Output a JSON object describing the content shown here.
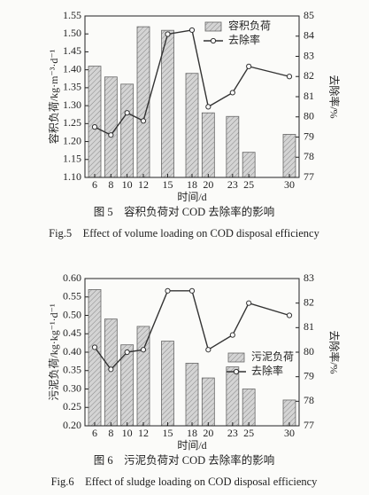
{
  "chart_data": [
    {
      "type": "bar-line",
      "x": [
        6,
        8,
        10,
        12,
        15,
        18,
        20,
        23,
        25,
        30
      ],
      "xlim": [
        4.8,
        31.2
      ],
      "xticks": [
        6,
        8,
        10,
        12,
        15,
        18,
        20,
        23,
        25,
        30
      ],
      "x_label": "时间/d",
      "y_label": "容积负荷/kg·m⁻³·d⁻¹",
      "y2_label": "去除率/%",
      "ylim": [
        1.1,
        1.55
      ],
      "yticks": [
        {
          "value": 1.1,
          "label": "1.10"
        },
        1.15,
        {
          "value": 1.2,
          "label": "1.20"
        },
        1.25,
        {
          "value": 1.3,
          "label": "1.30"
        },
        1.35,
        {
          "value": 1.4,
          "label": "1.40"
        },
        1.45,
        {
          "value": 1.5,
          "label": "1.50"
        },
        1.55
      ],
      "y2lim": [
        77,
        85
      ],
      "y2ticks": [
        77,
        78,
        79,
        80,
        81,
        82,
        83,
        84,
        85
      ],
      "legend": "top-right",
      "series": [
        {
          "name": "容积负荷",
          "type": "bar",
          "color": "#c4c4c4",
          "values": [
            1.41,
            1.38,
            1.36,
            1.52,
            1.51,
            1.39,
            1.28,
            1.27,
            1.17,
            1.22
          ]
        },
        {
          "name": "去除率",
          "type": "line",
          "axis": "y2",
          "color": "#333333",
          "values": [
            79.5,
            79.1,
            80.2,
            79.8,
            84.1,
            84.3,
            80.5,
            81.2,
            82.5,
            82.0
          ]
        }
      ],
      "captions": [
        "图 5　容积负荷对 COD 去除率的影响",
        "Fig.5　Effect of volume loading on COD disposal efficiency"
      ]
    },
    {
      "type": "bar-line",
      "x": [
        6,
        8,
        10,
        12,
        15,
        18,
        20,
        23,
        25,
        30
      ],
      "xlim": [
        4.8,
        31.2
      ],
      "xticks": [
        6,
        8,
        10,
        12,
        15,
        18,
        20,
        23,
        25,
        30
      ],
      "x_label": "时间/d",
      "y_label": "污泥负荷/kg·kg⁻¹·d⁻¹",
      "y2_label": "去除率/%",
      "ylim": [
        0.2,
        0.6
      ],
      "yticks": [
        {
          "value": 0.2,
          "label": "0.20"
        },
        0.25,
        {
          "value": 0.3,
          "label": "0.30"
        },
        0.35,
        {
          "value": 0.4,
          "label": "0.40"
        },
        0.45,
        {
          "value": 0.5,
          "label": "0.50"
        },
        0.55,
        {
          "value": 0.6,
          "label": "0.60"
        }
      ],
      "y2lim": [
        77,
        83
      ],
      "y2ticks": [
        77,
        78,
        79,
        80,
        81,
        82,
        83
      ],
      "legend": "right",
      "series": [
        {
          "name": "污泥负荷",
          "type": "bar",
          "color": "#c4c4c4",
          "values": [
            0.57,
            0.49,
            0.42,
            0.47,
            0.43,
            0.37,
            0.33,
            0.36,
            0.3,
            0.27
          ]
        },
        {
          "name": "去除率",
          "type": "line",
          "axis": "y2",
          "color": "#333333",
          "values": [
            80.2,
            79.3,
            80.0,
            80.1,
            82.5,
            82.5,
            80.1,
            80.7,
            82.0,
            81.5
          ]
        }
      ],
      "captions": [
        "图 6　污泥负荷对 COD 去除率的影响",
        "Fig.6　Effect of sludge loading on COD disposal efficiency"
      ]
    }
  ]
}
